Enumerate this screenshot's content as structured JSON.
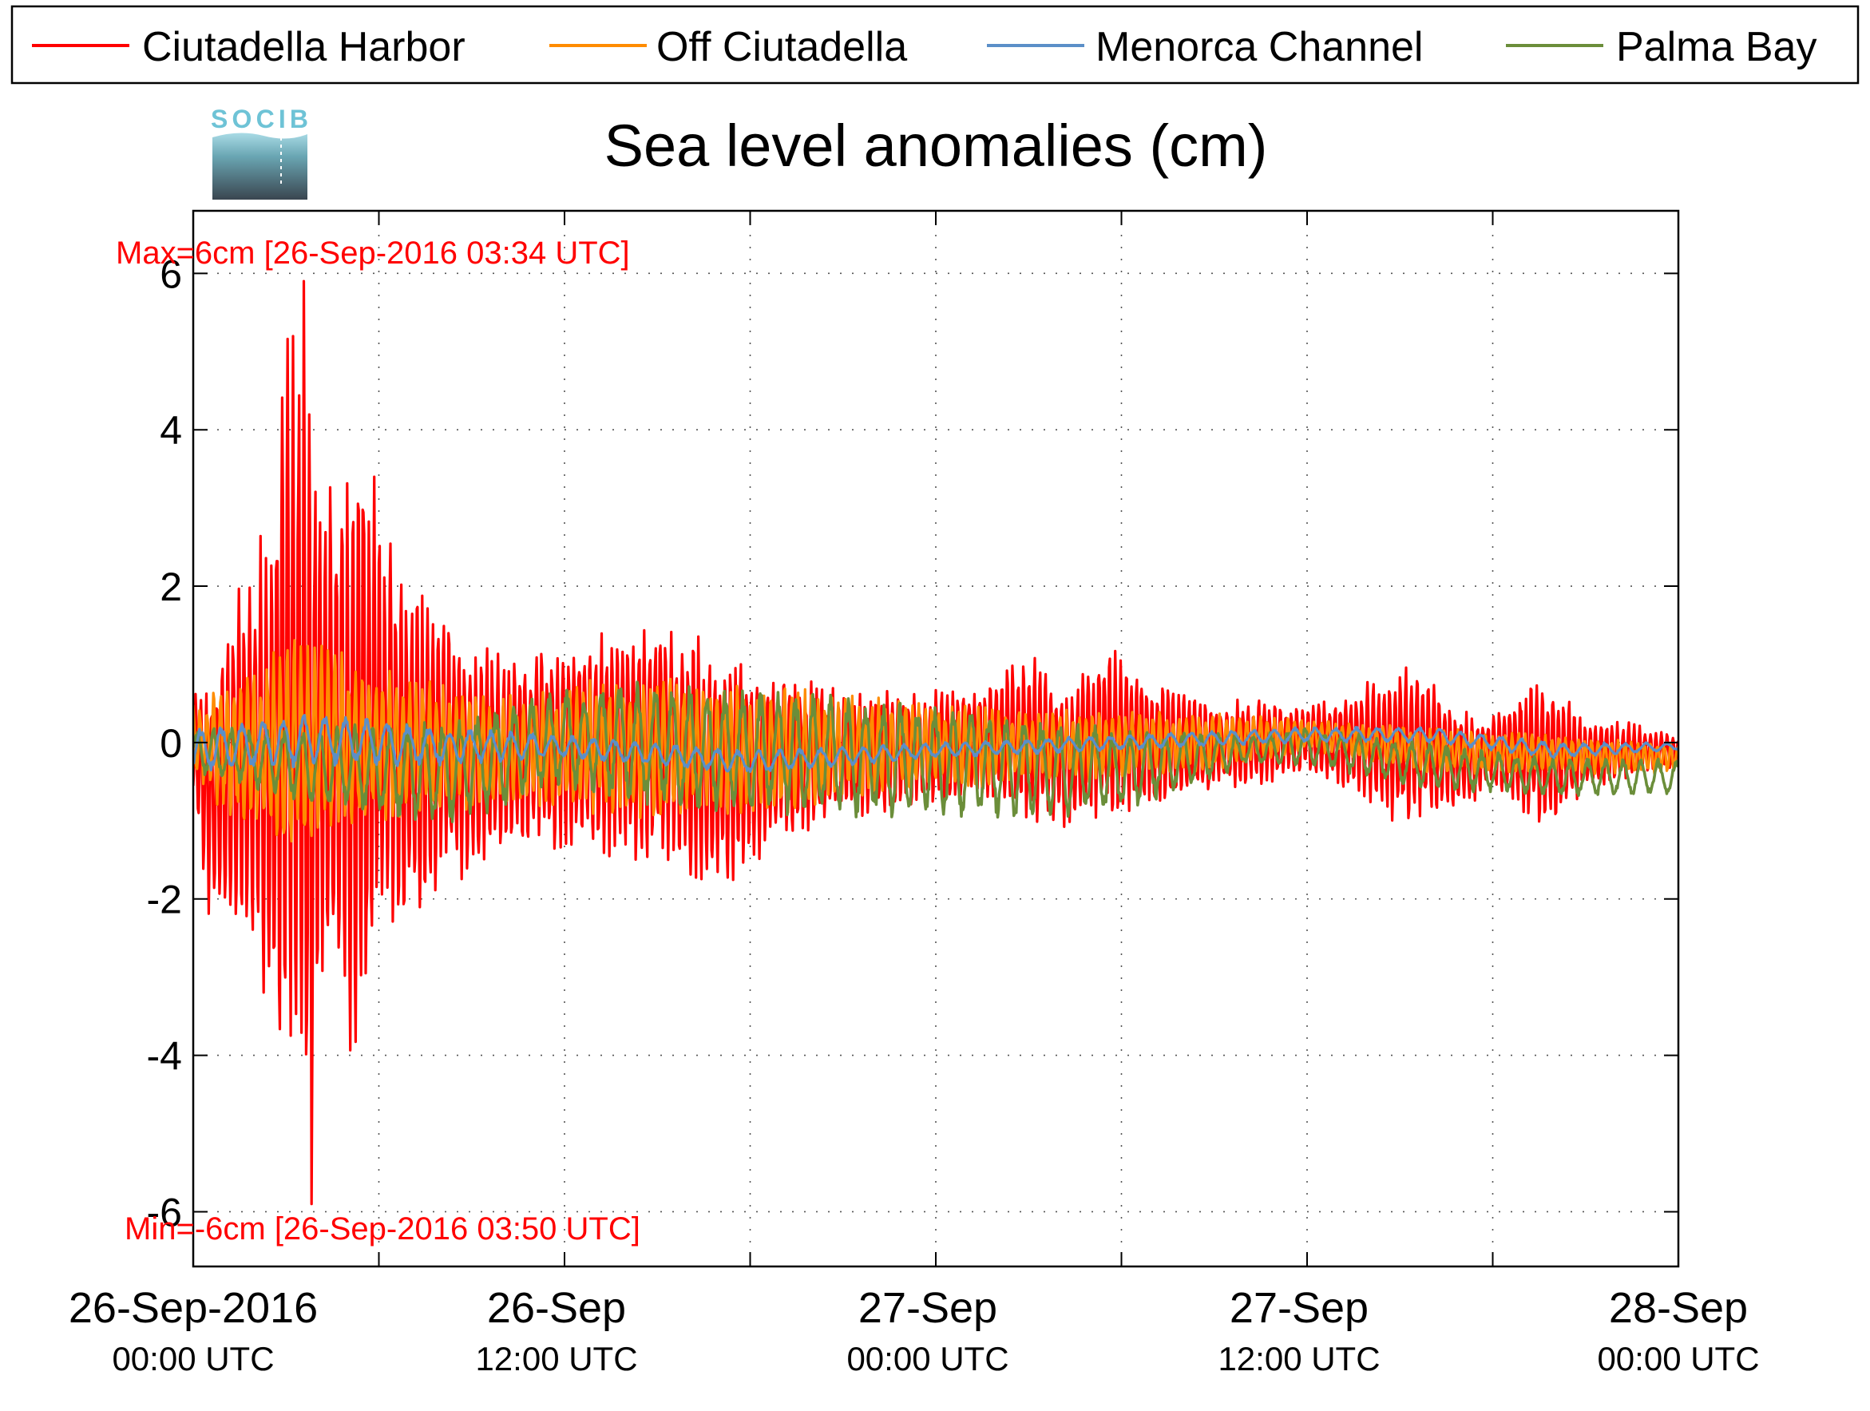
{
  "colors": {
    "ciutadella_harbor": "#ff0000",
    "off_ciutadella": "#ff8c00",
    "menorca_channel": "#5b8fc8",
    "palma_bay": "#6b8e3a",
    "logo_text": "#6ec3d6"
  },
  "logo": {
    "text": "SOCIB",
    "icon": "socib-logo-icon"
  },
  "chart_data": {
    "type": "line",
    "title": "Sea level anomalies (cm)",
    "ylabel": "",
    "xlabel": "",
    "ylim": [
      -6.7,
      6.8
    ],
    "xlim": [
      "2016-09-26 00:00",
      "2016-09-28 00:00"
    ],
    "grid": true,
    "legend_position": "top",
    "y_ticks": [
      "6",
      "4",
      "2",
      "0",
      "-2",
      "-4",
      "-6"
    ],
    "y_tick_values": [
      6,
      4,
      2,
      0,
      -2,
      -4,
      -6
    ],
    "x_tick_values_hours": [
      0,
      12,
      24,
      36,
      48
    ],
    "x_tick_labels": [
      {
        "line1": "26-Sep-2016",
        "line2": "00:00 UTC"
      },
      {
        "line1": "26-Sep",
        "line2": "12:00 UTC"
      },
      {
        "line1": "27-Sep",
        "line2": "00:00 UTC"
      },
      {
        "line1": "27-Sep",
        "line2": "12:00 UTC"
      },
      {
        "line1": "28-Sep",
        "line2": "00:00 UTC"
      }
    ],
    "annotations": {
      "max": "Max=6cm [26-Sep-2016 03:34 UTC]",
      "min": "Min=-6cm [26-Sep-2016 03:50 UTC]"
    },
    "series": [
      {
        "name": "Ciutadella Harbor",
        "envelope": [
          [
            0,
            0.6
          ],
          [
            1,
            1.5
          ],
          [
            2,
            2.5
          ],
          [
            2.5,
            3.2
          ],
          [
            3,
            5.4
          ],
          [
            3.5,
            5.9
          ],
          [
            4,
            4.1
          ],
          [
            5,
            3.5
          ],
          [
            5.5,
            4.7
          ],
          [
            6,
            3.0
          ],
          [
            7,
            2.2
          ],
          [
            8,
            1.8
          ],
          [
            9,
            1.4
          ],
          [
            11,
            1.2
          ],
          [
            13,
            1.5
          ],
          [
            15,
            1.7
          ],
          [
            17,
            1.2
          ],
          [
            19,
            0.9
          ],
          [
            21,
            0.7
          ],
          [
            24,
            0.7
          ],
          [
            26,
            0.9
          ],
          [
            27,
            1.2
          ],
          [
            28,
            0.7
          ],
          [
            29.5,
            1.3
          ],
          [
            30,
            1.1
          ],
          [
            32,
            0.7
          ],
          [
            33,
            0.5
          ],
          [
            34,
            0.6
          ],
          [
            36,
            0.5
          ],
          [
            38,
            0.8
          ],
          [
            39,
            1.1
          ],
          [
            40,
            0.9
          ],
          [
            41,
            0.4
          ],
          [
            42,
            0.4
          ],
          [
            43,
            0.8
          ],
          [
            44,
            0.8
          ],
          [
            45,
            0.3
          ],
          [
            46,
            0.3
          ],
          [
            48,
            0.1
          ]
        ],
        "envelope_min": [
          [
            0,
            -0.8
          ],
          [
            0.5,
            -2.3
          ],
          [
            1,
            -2.4
          ],
          [
            2,
            -2.8
          ],
          [
            2.5,
            -4.0
          ],
          [
            3,
            -3.9
          ],
          [
            3.5,
            -5.3
          ],
          [
            3.83,
            -5.9
          ],
          [
            4,
            -3.5
          ],
          [
            5,
            -4.0
          ],
          [
            5.5,
            -4.2
          ],
          [
            6,
            -2.8
          ],
          [
            7,
            -2.5
          ],
          [
            8,
            -1.9
          ],
          [
            9,
            -1.8
          ],
          [
            11,
            -1.4
          ],
          [
            13,
            -1.5
          ],
          [
            15,
            -1.6
          ],
          [
            17,
            -2.0
          ],
          [
            19,
            -1.3
          ],
          [
            21,
            -1.0
          ],
          [
            24,
            -0.8
          ],
          [
            26,
            -0.8
          ],
          [
            27,
            -1.0
          ],
          [
            28,
            -1.2
          ],
          [
            30,
            -1.0
          ],
          [
            32,
            -0.8
          ],
          [
            33,
            -0.6
          ],
          [
            34,
            -0.6
          ],
          [
            36,
            -0.4
          ],
          [
            38,
            -0.8
          ],
          [
            39,
            -1.1
          ],
          [
            40,
            -1.0
          ],
          [
            41,
            -0.9
          ],
          [
            42,
            -0.6
          ],
          [
            43,
            -1.0
          ],
          [
            44,
            -1.1
          ],
          [
            45,
            -0.6
          ],
          [
            46,
            -0.5
          ],
          [
            48,
            -0.3
          ]
        ],
        "period_min": 10.5,
        "y_min": -5.9,
        "y_max": 5.9
      },
      {
        "name": "Off Ciutadella",
        "envelope": [
          [
            0,
            0.5
          ],
          [
            2,
            1.0
          ],
          [
            3,
            1.4
          ],
          [
            4,
            1.3
          ],
          [
            6,
            1.0
          ],
          [
            8,
            0.8
          ],
          [
            10,
            0.6
          ],
          [
            14,
            0.9
          ],
          [
            18,
            0.8
          ],
          [
            24,
            0.5
          ],
          [
            30,
            0.4
          ],
          [
            34,
            0.4
          ],
          [
            36,
            0.3
          ],
          [
            40,
            0.2
          ],
          [
            44,
            0.1
          ],
          [
            48,
            0.0
          ]
        ],
        "envelope_min": [
          [
            0,
            -0.5
          ],
          [
            2,
            -1.3
          ],
          [
            3,
            -1.5
          ],
          [
            4,
            -1.3
          ],
          [
            6,
            -1.1
          ],
          [
            8,
            -0.9
          ],
          [
            10,
            -0.8
          ],
          [
            14,
            -1.0
          ],
          [
            18,
            -1.0
          ],
          [
            24,
            -0.6
          ],
          [
            30,
            -0.5
          ],
          [
            34,
            -0.3
          ],
          [
            36,
            -0.1
          ],
          [
            40,
            -0.4
          ],
          [
            44,
            -0.4
          ],
          [
            48,
            -0.4
          ]
        ],
        "period_min": 13,
        "y_min": -1.5,
        "y_max": 1.4
      },
      {
        "name": "Menorca Channel",
        "envelope": [
          [
            0,
            0.2
          ],
          [
            4,
            0.4
          ],
          [
            8,
            0.2
          ],
          [
            12,
            0.1
          ],
          [
            18,
            -0.1
          ],
          [
            24,
            0.0
          ],
          [
            30,
            0.1
          ],
          [
            36,
            0.2
          ],
          [
            40,
            0.2
          ],
          [
            44,
            0.0
          ],
          [
            48,
            0.0
          ]
        ],
        "envelope_min": [
          [
            0,
            -0.4
          ],
          [
            4,
            -0.3
          ],
          [
            8,
            -0.3
          ],
          [
            12,
            -0.2
          ],
          [
            18,
            -0.4
          ],
          [
            24,
            -0.2
          ],
          [
            30,
            -0.1
          ],
          [
            36,
            0.0
          ],
          [
            40,
            0.0
          ],
          [
            44,
            -0.2
          ],
          [
            48,
            -0.1
          ]
        ],
        "period_min": 40,
        "y_min": -0.5,
        "y_max": 0.5
      },
      {
        "name": "Palma Bay",
        "envelope": [
          [
            0,
            0.2
          ],
          [
            4,
            0.2
          ],
          [
            8,
            0.3
          ],
          [
            12,
            0.7
          ],
          [
            15,
            0.8
          ],
          [
            18,
            0.7
          ],
          [
            22,
            0.6
          ],
          [
            24,
            0.5
          ],
          [
            28,
            0.3
          ],
          [
            30,
            0.2
          ],
          [
            34,
            0.1
          ],
          [
            36,
            0.2
          ],
          [
            40,
            0.0
          ],
          [
            44,
            -0.2
          ],
          [
            48,
            -0.2
          ]
        ],
        "envelope_min": [
          [
            0,
            -0.4
          ],
          [
            4,
            -0.8
          ],
          [
            8,
            -1.1
          ],
          [
            12,
            -0.6
          ],
          [
            15,
            -0.9
          ],
          [
            18,
            -0.9
          ],
          [
            22,
            -1.0
          ],
          [
            24,
            -1.0
          ],
          [
            28,
            -1.0
          ],
          [
            30,
            -0.9
          ],
          [
            34,
            -0.3
          ],
          [
            36,
            -0.3
          ],
          [
            40,
            -0.6
          ],
          [
            44,
            -0.7
          ],
          [
            48,
            -0.7
          ]
        ],
        "period_min": 34,
        "y_min": -1.2,
        "y_max": 0.9
      }
    ]
  }
}
